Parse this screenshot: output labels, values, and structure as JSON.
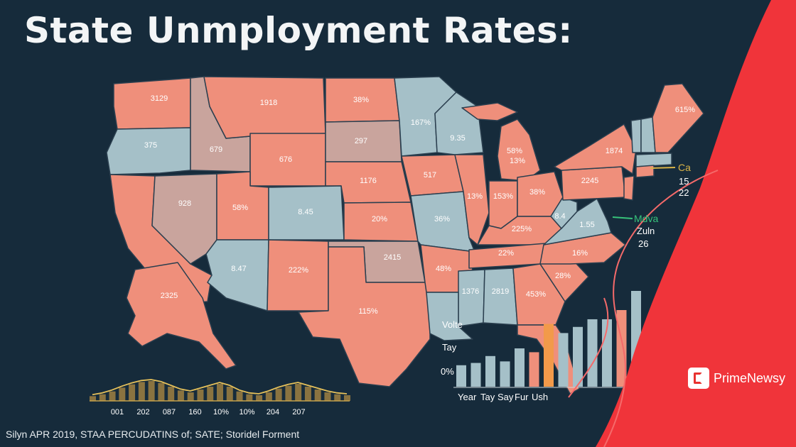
{
  "title": "State Unmployment Rates:",
  "source": "Silyn APR 2019, STAA PERCUDATINS of; SATE; Storidel Forment",
  "brand": {
    "name": "PrimeNewsy",
    "icon": "newspaper-icon"
  },
  "colors": {
    "background": "#162b3b",
    "salmon": "#ef8f7b",
    "blue": "#a5c0c8",
    "mauve": "#c9a49d",
    "red": "#f0343a",
    "gold": "#c6a24a",
    "orange": "#f29a4a"
  },
  "states": [
    {
      "id": "washington",
      "label": "3129"
    },
    {
      "id": "montana",
      "label": "1918"
    },
    {
      "id": "north-dakota",
      "label": "38%"
    },
    {
      "id": "minnesota",
      "label": "167%"
    },
    {
      "id": "wisconsin",
      "label": "9.35"
    },
    {
      "id": "maine",
      "label": "615%"
    },
    {
      "id": "oregon",
      "label": "375"
    },
    {
      "id": "idaho",
      "label": "679"
    },
    {
      "id": "wyoming",
      "label": "676"
    },
    {
      "id": "south-dakota",
      "label": "297"
    },
    {
      "id": "michigan-upper",
      "label": "58%"
    },
    {
      "id": "michigan-lower",
      "label": "13%"
    },
    {
      "id": "new-york",
      "label": "1874"
    },
    {
      "id": "nebraska",
      "label": "1176"
    },
    {
      "id": "iowa",
      "label": "517"
    },
    {
      "id": "nevada",
      "label": "928"
    },
    {
      "id": "utah",
      "label": "58%"
    },
    {
      "id": "colorado",
      "label": "8.45"
    },
    {
      "id": "kansas",
      "label": "20%"
    },
    {
      "id": "missouri",
      "label": "36%"
    },
    {
      "id": "illinois",
      "label": "13%"
    },
    {
      "id": "indiana",
      "label": "153%"
    },
    {
      "id": "ohio",
      "label": "38%"
    },
    {
      "id": "pennsylvania",
      "label": "2245"
    },
    {
      "id": "west-virginia",
      "label": "8.4"
    },
    {
      "id": "virginia",
      "label": "1.55"
    },
    {
      "id": "kentucky",
      "label": "225%"
    },
    {
      "id": "arizona",
      "label": "8.47"
    },
    {
      "id": "new-mexico",
      "label": "222%"
    },
    {
      "id": "oklahoma",
      "label": "2415"
    },
    {
      "id": "arkansas",
      "label": "48%"
    },
    {
      "id": "tennessee",
      "label": "22%"
    },
    {
      "id": "north-carolina",
      "label": "16%"
    },
    {
      "id": "south-carolina",
      "label": "28%"
    },
    {
      "id": "mississippi",
      "label": "1376"
    },
    {
      "id": "alabama",
      "label": "2819"
    },
    {
      "id": "georgia",
      "label": "453%"
    },
    {
      "id": "texas",
      "label": "115%"
    },
    {
      "id": "california",
      "label": ""
    },
    {
      "id": "alaska",
      "label": "2325"
    }
  ],
  "callouts": [
    {
      "label": "Ca",
      "color": "#d9b348"
    },
    {
      "label": "15",
      "color": "#ffffff"
    },
    {
      "label": "22",
      "color": "#ffffff"
    },
    {
      "label": "Mdva",
      "color": "#37c27a"
    },
    {
      "label": "Zuln",
      "color": "#ffffff"
    },
    {
      "label": "26",
      "color": "#ffffff"
    }
  ],
  "side_chart": {
    "title": "Volte",
    "ylabel": "Tay",
    "yaxis_label": "0%",
    "categories": [
      "Year",
      "Tay",
      "Say",
      "Fur",
      "Ush"
    ],
    "bars": [
      {
        "value": 28,
        "color": "#a5c0c8"
      },
      {
        "value": 31,
        "color": "#a5c0c8"
      },
      {
        "value": 40,
        "color": "#a5c0c8"
      },
      {
        "value": 33,
        "color": "#a5c0c8"
      },
      {
        "value": 50,
        "color": "#a5c0c8"
      },
      {
        "value": 45,
        "color": "#ef8f7b"
      },
      {
        "value": 82,
        "color": "#f29a4a"
      },
      {
        "value": 70,
        "color": "#a5c0c8"
      },
      {
        "value": 78,
        "color": "#a5c0c8"
      },
      {
        "value": 88,
        "color": "#a5c0c8"
      },
      {
        "value": 88,
        "color": "#a5c0c8"
      },
      {
        "value": 100,
        "color": "#ef8f7b"
      },
      {
        "value": 125,
        "color": "#a5c0c8"
      }
    ]
  },
  "timeline": {
    "labels": [
      "001",
      "202",
      "087",
      "160",
      "10%",
      "10%",
      "204",
      "207"
    ],
    "values": [
      10,
      14,
      20,
      28,
      35,
      40,
      42,
      38,
      30,
      22,
      18,
      24,
      30,
      36,
      30,
      20,
      14,
      12,
      18,
      26,
      32,
      36,
      30,
      24,
      18,
      14,
      12
    ]
  }
}
